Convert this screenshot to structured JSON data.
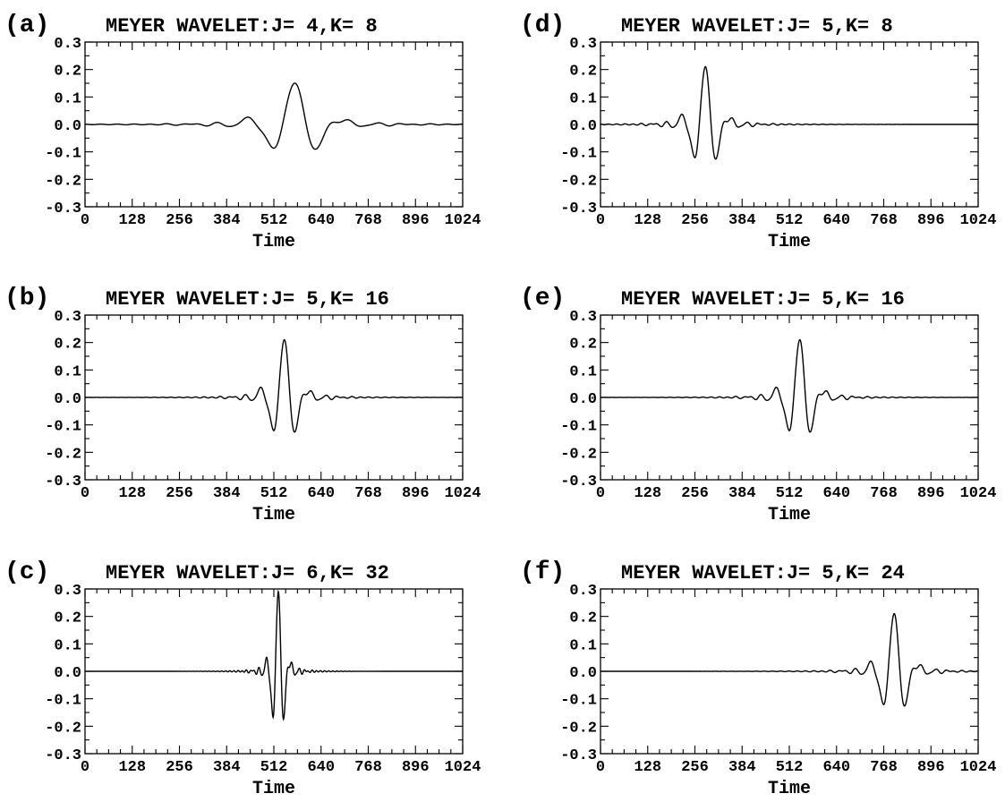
{
  "figure": {
    "xlabel": "Time",
    "x_ticks": [
      "0",
      "128",
      "256",
      "384",
      "512",
      "640",
      "768",
      "896",
      "1024"
    ],
    "y_ticks": [
      "0.3",
      "0.2",
      "0.1",
      "0.0",
      "-0.1",
      "-0.2",
      "-0.3"
    ]
  },
  "chart_data": [
    {
      "type": "line",
      "panel": "(a)",
      "title": "MEYER WAVELET:J= 4,K=  8",
      "xlabel": "Time",
      "xlim": [
        0,
        1024
      ],
      "ylim": [
        -0.3,
        0.3
      ],
      "wavelet": {
        "j": 4,
        "k": 8,
        "center": 568,
        "scale": 64,
        "peak": 0.15
      }
    },
    {
      "type": "line",
      "panel": "(b)",
      "title": "MEYER WAVELET:J= 5,K= 16",
      "xlabel": "Time",
      "xlim": [
        0,
        1024
      ],
      "ylim": [
        -0.3,
        0.3
      ],
      "wavelet": {
        "j": 5,
        "k": 16,
        "center": 540,
        "scale": 32,
        "peak": 0.21
      }
    },
    {
      "type": "line",
      "panel": "(c)",
      "title": "MEYER WAVELET:J= 6,K= 32",
      "xlabel": "Time",
      "xlim": [
        0,
        1024
      ],
      "ylim": [
        -0.3,
        0.3
      ],
      "wavelet": {
        "j": 6,
        "k": 32,
        "center": 524,
        "scale": 16,
        "peak": 0.29
      }
    },
    {
      "type": "line",
      "panel": "(d)",
      "title": "MEYER WAVELET:J= 5,K=  8",
      "xlabel": "Time",
      "xlim": [
        0,
        1024
      ],
      "ylim": [
        -0.3,
        0.3
      ],
      "wavelet": {
        "j": 5,
        "k": 8,
        "center": 284,
        "scale": 32,
        "peak": 0.21
      }
    },
    {
      "type": "line",
      "panel": "(e)",
      "title": "MEYER WAVELET:J= 5,K= 16",
      "xlabel": "Time",
      "xlim": [
        0,
        1024
      ],
      "ylim": [
        -0.3,
        0.3
      ],
      "wavelet": {
        "j": 5,
        "k": 16,
        "center": 540,
        "scale": 32,
        "peak": 0.21
      }
    },
    {
      "type": "line",
      "panel": "(f)",
      "title": "MEYER WAVELET:J= 5,K= 24",
      "xlabel": "Time",
      "xlim": [
        0,
        1024
      ],
      "ylim": [
        -0.3,
        0.3
      ],
      "wavelet": {
        "j": 5,
        "k": 24,
        "center": 796,
        "scale": 32,
        "peak": 0.21
      }
    }
  ]
}
